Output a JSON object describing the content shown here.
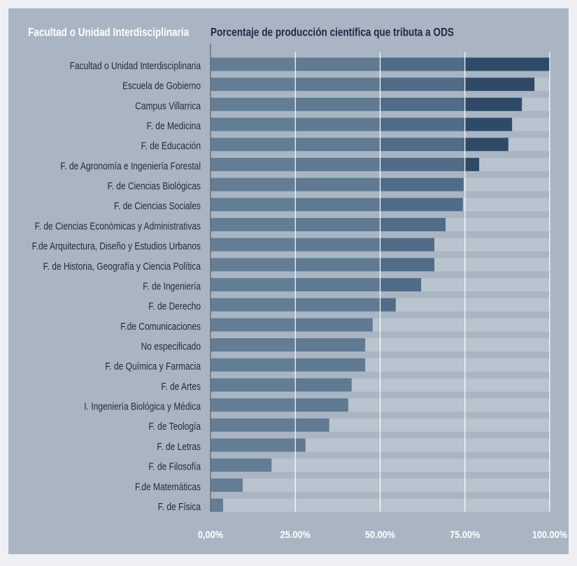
{
  "chart_data": {
    "type": "bar",
    "orientation": "horizontal",
    "category_axis_title": "Facultad o Unidad Interdisciplinaria",
    "title": "Porcentaje de producción científica que tributa a ODS",
    "categories": [
      "Facultad o Unidad Interdisciplinaria",
      "Escuela de Gobierno",
      "Campus Villarrica",
      "F. de Medicina",
      "F. de Educación",
      "F. de Agronomía e Ingeniería Forestal",
      "F. de Ciencias Biológicas",
      "F. de Ciencias Sociales",
      "F. de Ciencias Económicas y Administrativas",
      "F.de Arquitectura, Diseño y Estudios Urbanos",
      "F. de Historia, Geografía y Ciencia Política",
      "F. de Ingeniería",
      "F. de Derecho",
      "F.de Comunicaciones",
      "No especificado",
      "F. de Química y Farmacia",
      "F. de Artes",
      "I. Ingeniería Biológica y Médica",
      "F. de Teología",
      "F. de Letras",
      "F. de Filosofía",
      "F.de Matemáticas",
      "F. de Física"
    ],
    "values": [
      100,
      95.5,
      91.8,
      88.9,
      87.8,
      79.2,
      74.6,
      74.4,
      69.3,
      66.0,
      66.0,
      62.1,
      54.6,
      47.8,
      45.6,
      45.6,
      41.6,
      40.6,
      35.0,
      28.0,
      18.0,
      9.5,
      3.7
    ],
    "xlim": [
      0,
      100
    ],
    "xticks": [
      {
        "value": 0,
        "label": "0,00%"
      },
      {
        "value": 25,
        "label": "25.00%"
      },
      {
        "value": 50,
        "label": "50.00%"
      },
      {
        "value": 75,
        "label": "75.00%"
      },
      {
        "value": 100,
        "label": "100.00%"
      }
    ],
    "grid": true,
    "zone_colors": [
      "#637d95",
      "#5f7a92",
      "#516c87",
      "#2f4a67"
    ],
    "track_color": "#b9c4cf"
  }
}
